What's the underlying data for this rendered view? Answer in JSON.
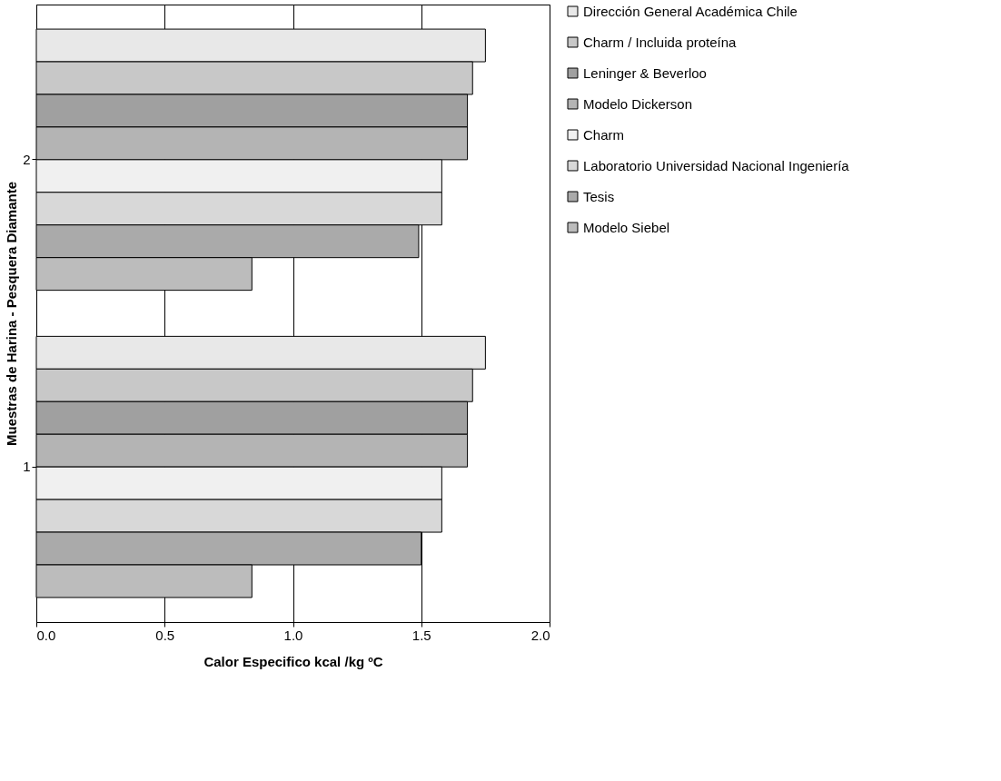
{
  "chart_data": {
    "type": "bar",
    "orientation": "horizontal",
    "xlabel": "Calor Especifico kcal /kg ºC",
    "ylabel": "Muestras de Harina - Pesquera Diamante",
    "categories": [
      "2",
      "1"
    ],
    "series": [
      {
        "name": "Dirección General Académica Chile",
        "color": "#e8e8e8",
        "values": [
          1.75,
          1.75
        ]
      },
      {
        "name": "Charm / Incluida proteína",
        "color": "#c8c8c8",
        "values": [
          1.7,
          1.7
        ]
      },
      {
        "name": "Leninger & Beverloo",
        "color": "#a0a0a0",
        "values": [
          1.68,
          1.68
        ]
      },
      {
        "name": "Modelo Dickerson",
        "color": "#b4b4b4",
        "values": [
          1.68,
          1.68
        ]
      },
      {
        "name": "Charm",
        "color": "#f0f0f0",
        "values": [
          1.58,
          1.58
        ]
      },
      {
        "name": "Laboratorio Universidad Nacional Ingeniería",
        "color": "#d8d8d8",
        "values": [
          1.58,
          1.58
        ]
      },
      {
        "name": "Tesis",
        "color": "#aaaaaa",
        "values": [
          1.49,
          1.5
        ]
      },
      {
        "name": "Modelo Siebel",
        "color": "#bcbcbc",
        "values": [
          0.84,
          0.84
        ]
      }
    ],
    "xlim": [
      0,
      2
    ],
    "xticks": [
      {
        "value": 0,
        "label": "0.0"
      },
      {
        "value": 0.5,
        "label": "0.5"
      },
      {
        "value": 1,
        "label": "1.0"
      },
      {
        "value": 1.5,
        "label": "1.5"
      },
      {
        "value": 2,
        "label": "2.0"
      }
    ],
    "grid": "x",
    "legend": "right"
  }
}
